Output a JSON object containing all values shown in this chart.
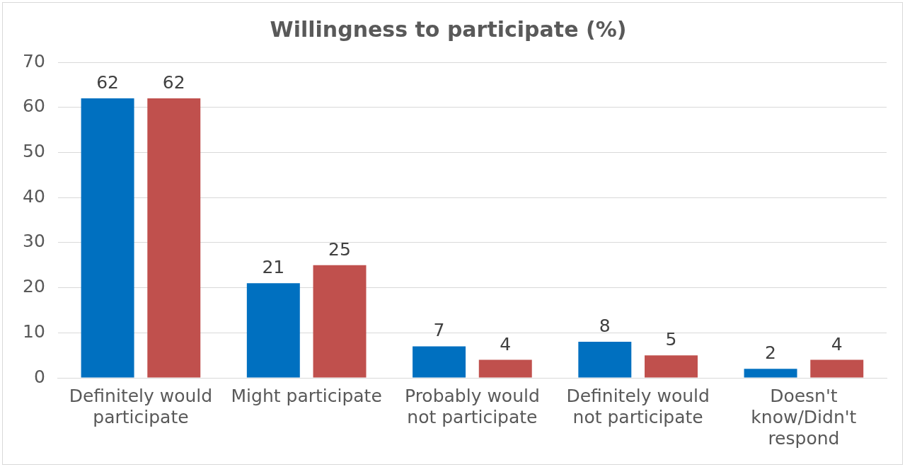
{
  "chart_data": {
    "type": "bar",
    "title": "Willingness to participate (%)",
    "categories": [
      "Definitely would participate",
      "Might participate",
      "Probably would not participate",
      "Definitely would not participate",
      "Doesn't know/Didn't respond"
    ],
    "series": [
      {
        "color": "#0070c0",
        "values": [
          62,
          21,
          7,
          8,
          2
        ]
      },
      {
        "color": "#c0504d",
        "values": [
          62,
          25,
          4,
          5,
          4
        ]
      }
    ],
    "ylim": [
      0,
      70
    ],
    "yticks": [
      0,
      10,
      20,
      30,
      40,
      50,
      60,
      70
    ],
    "grid": "y",
    "legend": false,
    "data_labels": true
  }
}
